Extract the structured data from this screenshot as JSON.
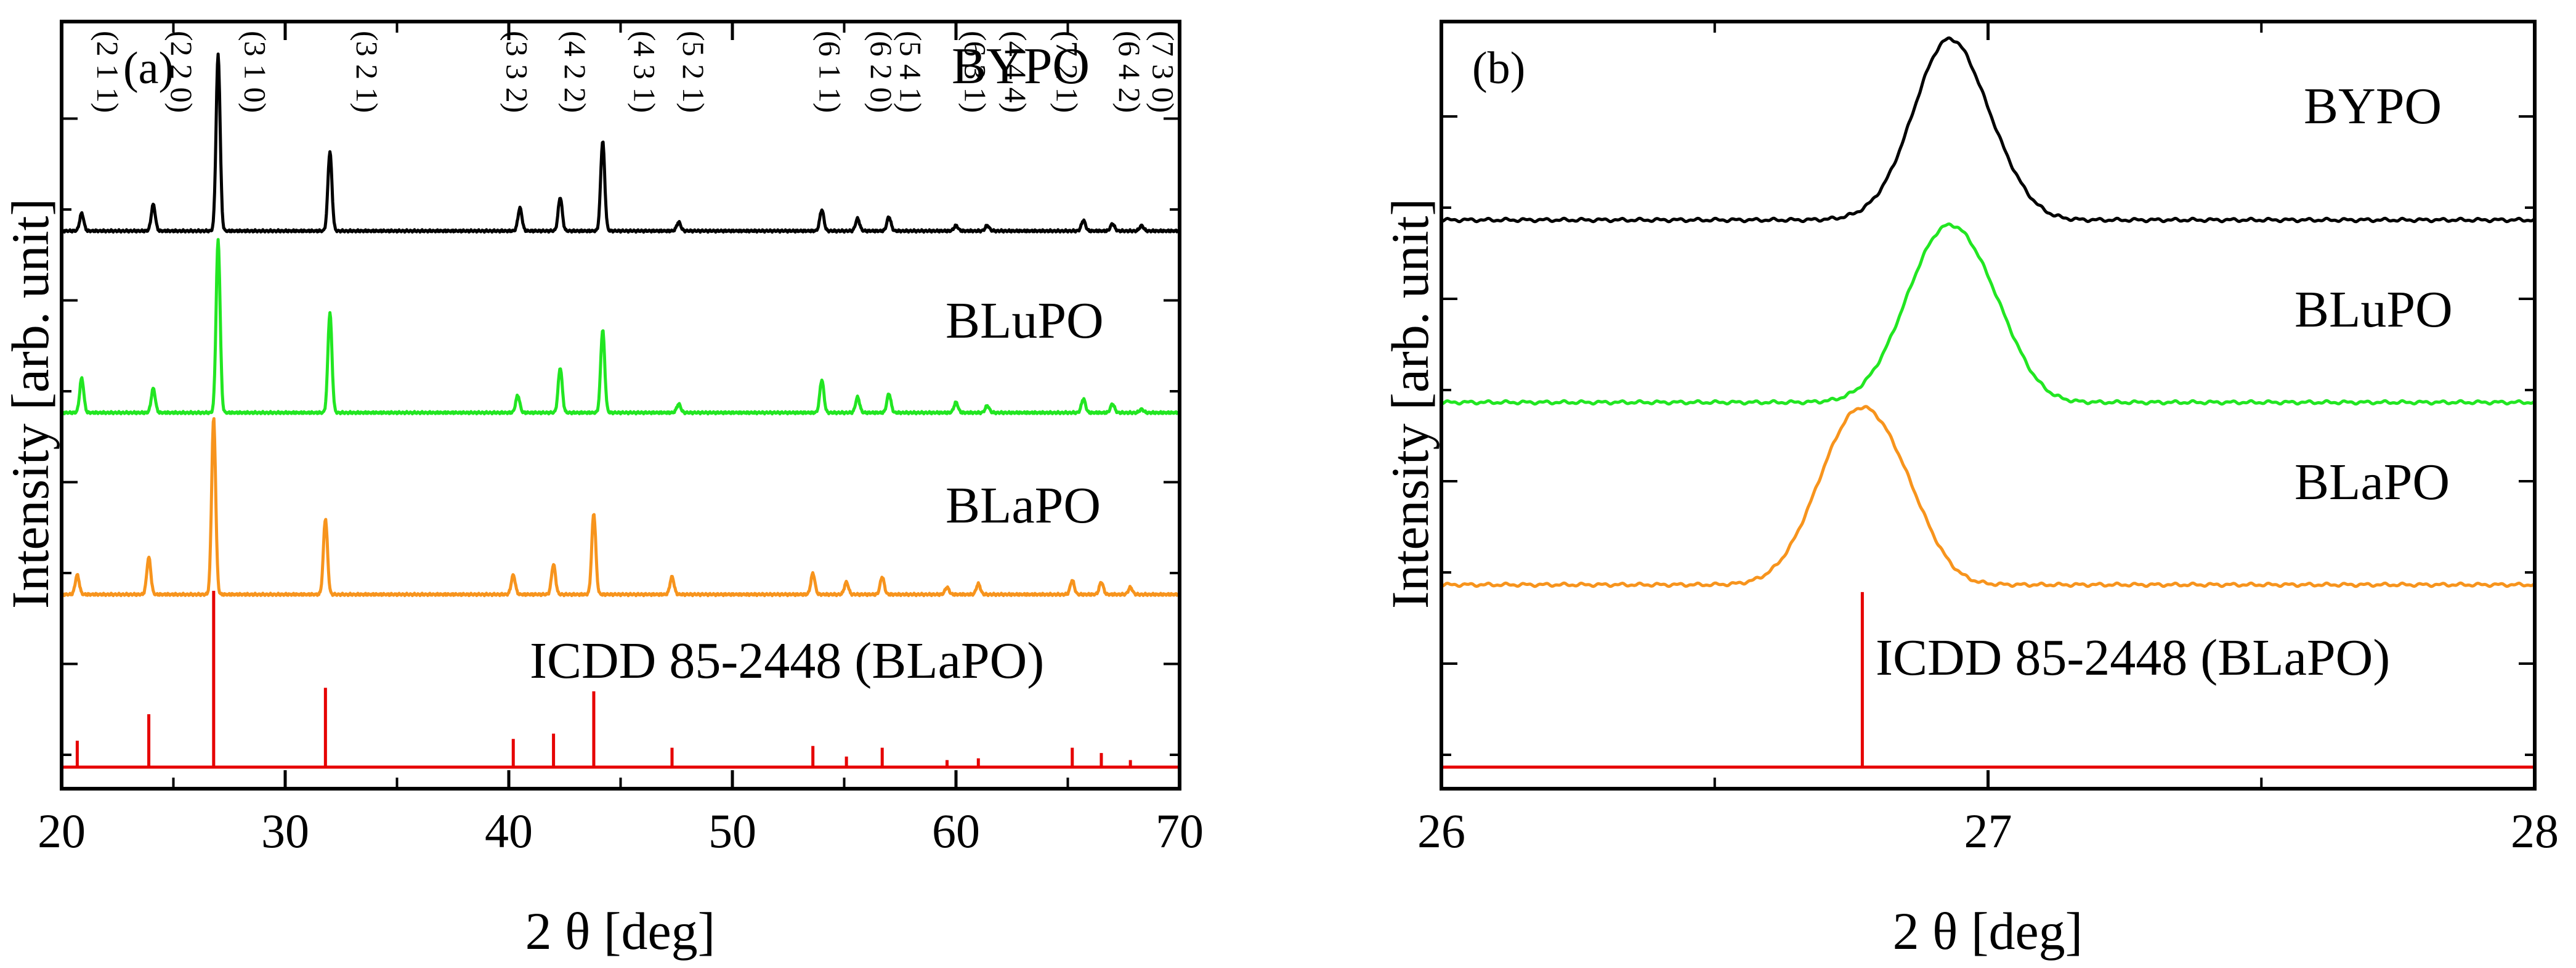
{
  "chart_data": [
    {
      "type": "line",
      "panel": "(a)",
      "xlabel": "2 θ [deg]",
      "ylabel": "Intensity [arb. unit]",
      "xlim": [
        20,
        70
      ],
      "xticks": [
        20,
        30,
        40,
        50,
        60,
        70
      ],
      "yticks": "none (stacked, offset traces)",
      "series": [
        {
          "name": "BYPO",
          "color": "#000000",
          "offset": 2.95,
          "height": 0.97,
          "peaks": [
            [
              20.9,
              0.1
            ],
            [
              24.1,
              0.15
            ],
            [
              27.0,
              1.0
            ],
            [
              32.0,
              0.45
            ],
            [
              40.5,
              0.13
            ],
            [
              42.3,
              0.19
            ],
            [
              44.2,
              0.51
            ],
            [
              47.6,
              0.05
            ],
            [
              54.0,
              0.12
            ],
            [
              55.6,
              0.07
            ],
            [
              57.0,
              0.08
            ],
            [
              60.0,
              0.03
            ],
            [
              61.4,
              0.03
            ],
            [
              65.7,
              0.06
            ],
            [
              67.0,
              0.04
            ],
            [
              68.3,
              0.03
            ]
          ]
        },
        {
          "name": "BLuPO",
          "color": "#22E622",
          "offset": 1.95,
          "height": 0.95,
          "peaks": [
            [
              20.9,
              0.2
            ],
            [
              24.1,
              0.14
            ],
            [
              27.0,
              1.0
            ],
            [
              32.0,
              0.58
            ],
            [
              40.4,
              0.1
            ],
            [
              42.3,
              0.26
            ],
            [
              44.2,
              0.48
            ],
            [
              47.6,
              0.05
            ],
            [
              54.0,
              0.19
            ],
            [
              55.6,
              0.09
            ],
            [
              57.0,
              0.11
            ],
            [
              60.0,
              0.06
            ],
            [
              61.4,
              0.04
            ],
            [
              65.7,
              0.08
            ],
            [
              67.0,
              0.05
            ],
            [
              68.3,
              0.02
            ]
          ]
        },
        {
          "name": "BLaPO",
          "color": "#F7941D",
          "offset": 0.95,
          "height": 0.97,
          "peaks": [
            [
              20.7,
              0.11
            ],
            [
              23.9,
              0.21
            ],
            [
              26.8,
              1.0
            ],
            [
              31.8,
              0.43
            ],
            [
              40.2,
              0.11
            ],
            [
              42.0,
              0.17
            ],
            [
              43.8,
              0.46
            ],
            [
              47.3,
              0.1
            ],
            [
              53.6,
              0.12
            ],
            [
              55.1,
              0.07
            ],
            [
              56.7,
              0.1
            ],
            [
              59.6,
              0.04
            ],
            [
              61.0,
              0.06
            ],
            [
              65.2,
              0.08
            ],
            [
              66.5,
              0.07
            ],
            [
              67.8,
              0.04
            ]
          ]
        },
        {
          "name": "ICDD 85-2448 (BLaPO)",
          "color": "#E60000",
          "offset": 0.0,
          "height": 0.97,
          "style": "stick",
          "peaks": [
            [
              20.7,
              0.15
            ],
            [
              23.9,
              0.3
            ],
            [
              26.8,
              1.0
            ],
            [
              31.8,
              0.45
            ],
            [
              40.2,
              0.16
            ],
            [
              42.0,
              0.19
            ],
            [
              43.8,
              0.43
            ],
            [
              47.3,
              0.11
            ],
            [
              53.6,
              0.12
            ],
            [
              55.1,
              0.06
            ],
            [
              56.7,
              0.11
            ],
            [
              59.6,
              0.04
            ],
            [
              61.0,
              0.05
            ],
            [
              65.2,
              0.11
            ],
            [
              66.5,
              0.08
            ],
            [
              67.8,
              0.04
            ]
          ]
        }
      ],
      "annotations": [
        {
          "text": "(2 1 1)",
          "x": 21.6
        },
        {
          "text": "(2 2 0)",
          "x": 24.9
        },
        {
          "text": "(3 1 0)",
          "x": 28.2
        },
        {
          "text": "(3 2 1)",
          "x": 33.2
        },
        {
          "text": "(3 3 2)",
          "x": 39.9
        },
        {
          "text": "(4 2 2)",
          "x": 42.5
        },
        {
          "text": "(4 3 1)",
          "x": 45.6
        },
        {
          "text": "(5 2 1)",
          "x": 47.8
        },
        {
          "text": "(6 1 1)",
          "x": 53.9
        },
        {
          "text": "(6 2 0)",
          "x": 56.2
        },
        {
          "text": "(5 4 1)",
          "x": 57.5
        },
        {
          "text": "(6 3 1)",
          "x": 60.4
        },
        {
          "text": "(4 4 4)",
          "x": 62.2
        },
        {
          "text": "(7 2 1)",
          "x": 64.5
        },
        {
          "text": "(6 4 2)",
          "x": 67.3
        },
        {
          "text": "(7 3 0)",
          "x": 68.8
        }
      ]
    },
    {
      "type": "line",
      "panel": "(b)",
      "xlabel": "2 θ [deg]",
      "ylabel": "Intensity [arb. unit]",
      "xlim": [
        26,
        28
      ],
      "xticks": [
        26,
        27,
        28
      ],
      "yticks": "none (stacked, offset traces)",
      "series": [
        {
          "name": "BYPO",
          "color": "#000000",
          "offset": 3.0,
          "height": 1.0,
          "peak_center": 26.93,
          "peak_width": 0.06
        },
        {
          "name": "BLuPO",
          "color": "#22E622",
          "offset": 2.0,
          "height": 0.98,
          "peak_center": 26.93,
          "peak_width": 0.07
        },
        {
          "name": "BLaPO",
          "color": "#F7941D",
          "offset": 1.0,
          "height": 0.98,
          "peak_center": 26.77,
          "peak_width": 0.07
        },
        {
          "name": "ICDD 85-2448 (BLaPO)",
          "color": "#E60000",
          "offset": 0.0,
          "height": 1.0,
          "style": "stick",
          "peaks": [
            [
              26.77,
              1.0
            ]
          ]
        }
      ]
    }
  ]
}
